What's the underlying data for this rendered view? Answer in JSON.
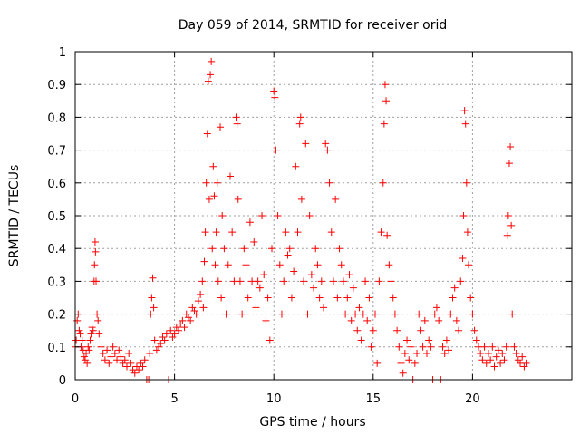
{
  "chart_data": {
    "type": "scatter",
    "title": "Day 059 of 2014, SRMTID for receiver orid",
    "xlabel": "GPS time / hours",
    "ylabel": "SRMTID / TECUs",
    "xlim": [
      0,
      25
    ],
    "ylim": [
      0,
      1
    ],
    "grid": true,
    "marker": "+",
    "marker_color": "#ff0000",
    "x_ticks": [
      0,
      5,
      10,
      15,
      20
    ],
    "x_tick_labels": [
      "0",
      "5",
      "10",
      "15",
      "20"
    ],
    "y_ticks": [
      0,
      0.1,
      0.2,
      0.3,
      0.4,
      0.5,
      0.6,
      0.7,
      0.8,
      0.9,
      1
    ],
    "y_tick_labels": [
      "0",
      "0.1",
      "0.2",
      "0.3",
      "0.4",
      "0.5",
      "0.6",
      "0.7",
      "0.8",
      "0.9",
      "1"
    ],
    "series": [
      {
        "name": "SRMTID",
        "points": [
          [
            0.0,
            0.1
          ],
          [
            0.05,
            0.12
          ],
          [
            0.1,
            0.18
          ],
          [
            0.15,
            0.2
          ],
          [
            0.2,
            0.15
          ],
          [
            0.25,
            0.14
          ],
          [
            0.3,
            0.1
          ],
          [
            0.35,
            0.12
          ],
          [
            0.4,
            0.09
          ],
          [
            0.45,
            0.07
          ],
          [
            0.5,
            0.06
          ],
          [
            0.55,
            0.08
          ],
          [
            0.6,
            0.05
          ],
          [
            0.65,
            0.1
          ],
          [
            0.7,
            0.09
          ],
          [
            0.75,
            0.12
          ],
          [
            0.8,
            0.14
          ],
          [
            0.85,
            0.16
          ],
          [
            0.9,
            0.15
          ],
          [
            0.95,
            0.3
          ],
          [
            0.97,
            0.35
          ],
          [
            1.0,
            0.42
          ],
          [
            1.02,
            0.39
          ],
          [
            1.05,
            0.3
          ],
          [
            1.1,
            0.2
          ],
          [
            1.15,
            0.18
          ],
          [
            1.2,
            0.14
          ],
          [
            1.3,
            0.1
          ],
          [
            1.4,
            0.08
          ],
          [
            1.5,
            0.06
          ],
          [
            1.6,
            0.09
          ],
          [
            1.7,
            0.05
          ],
          [
            1.8,
            0.07
          ],
          [
            1.9,
            0.1
          ],
          [
            2.0,
            0.08
          ],
          [
            2.1,
            0.06
          ],
          [
            2.2,
            0.09
          ],
          [
            2.3,
            0.07
          ],
          [
            2.4,
            0.05
          ],
          [
            2.5,
            0.06
          ],
          [
            2.6,
            0.04
          ],
          [
            2.7,
            0.08
          ],
          [
            2.8,
            0.05
          ],
          [
            2.9,
            0.03
          ],
          [
            3.0,
            0.02
          ],
          [
            3.1,
            0.04
          ],
          [
            3.2,
            0.03
          ],
          [
            3.3,
            0.05
          ],
          [
            3.4,
            0.04
          ],
          [
            3.5,
            0.06
          ],
          [
            3.6,
            0.0
          ],
          [
            3.7,
            0.0
          ],
          [
            3.75,
            0.08
          ],
          [
            3.8,
            0.2
          ],
          [
            3.85,
            0.25
          ],
          [
            3.9,
            0.31
          ],
          [
            3.95,
            0.22
          ],
          [
            4.0,
            0.12
          ],
          [
            4.1,
            0.09
          ],
          [
            4.2,
            0.1
          ],
          [
            4.3,
            0.11
          ],
          [
            4.4,
            0.13
          ],
          [
            4.5,
            0.12
          ],
          [
            4.6,
            0.14
          ],
          [
            4.7,
            0.0
          ],
          [
            4.8,
            0.15
          ],
          [
            4.9,
            0.13
          ],
          [
            5.0,
            0.14
          ],
          [
            5.1,
            0.16
          ],
          [
            5.2,
            0.15
          ],
          [
            5.3,
            0.17
          ],
          [
            5.4,
            0.18
          ],
          [
            5.5,
            0.16
          ],
          [
            5.6,
            0.2
          ],
          [
            5.7,
            0.19
          ],
          [
            5.8,
            0.18
          ],
          [
            5.9,
            0.22
          ],
          [
            6.0,
            0.21
          ],
          [
            6.1,
            0.2
          ],
          [
            6.2,
            0.24
          ],
          [
            6.3,
            0.26
          ],
          [
            6.4,
            0.3
          ],
          [
            6.45,
            0.22
          ],
          [
            6.5,
            0.36
          ],
          [
            6.55,
            0.45
          ],
          [
            6.6,
            0.6
          ],
          [
            6.65,
            0.75
          ],
          [
            6.7,
            0.91
          ],
          [
            6.75,
            0.55
          ],
          [
            6.8,
            0.93
          ],
          [
            6.85,
            0.97
          ],
          [
            6.9,
            0.4
          ],
          [
            6.95,
            0.65
          ],
          [
            7.0,
            0.56
          ],
          [
            7.05,
            0.35
          ],
          [
            7.1,
            0.45
          ],
          [
            7.15,
            0.6
          ],
          [
            7.2,
            0.3
          ],
          [
            7.3,
            0.77
          ],
          [
            7.35,
            0.25
          ],
          [
            7.4,
            0.5
          ],
          [
            7.5,
            0.4
          ],
          [
            7.6,
            0.2
          ],
          [
            7.7,
            0.35
          ],
          [
            7.8,
            0.62
          ],
          [
            7.9,
            0.45
          ],
          [
            8.0,
            0.3
          ],
          [
            8.1,
            0.8
          ],
          [
            8.15,
            0.78
          ],
          [
            8.2,
            0.55
          ],
          [
            8.3,
            0.3
          ],
          [
            8.4,
            0.2
          ],
          [
            8.5,
            0.4
          ],
          [
            8.6,
            0.35
          ],
          [
            8.7,
            0.25
          ],
          [
            8.8,
            0.48
          ],
          [
            8.9,
            0.3
          ],
          [
            9.0,
            0.42
          ],
          [
            9.1,
            0.22
          ],
          [
            9.2,
            0.3
          ],
          [
            9.3,
            0.28
          ],
          [
            9.4,
            0.5
          ],
          [
            9.5,
            0.32
          ],
          [
            9.6,
            0.18
          ],
          [
            9.7,
            0.25
          ],
          [
            9.8,
            0.12
          ],
          [
            9.9,
            0.4
          ],
          [
            10.0,
            0.88
          ],
          [
            10.05,
            0.86
          ],
          [
            10.1,
            0.7
          ],
          [
            10.2,
            0.5
          ],
          [
            10.3,
            0.35
          ],
          [
            10.4,
            0.2
          ],
          [
            10.5,
            0.3
          ],
          [
            10.6,
            0.45
          ],
          [
            10.7,
            0.38
          ],
          [
            10.8,
            0.4
          ],
          [
            10.9,
            0.25
          ],
          [
            11.0,
            0.33
          ],
          [
            11.1,
            0.65
          ],
          [
            11.2,
            0.45
          ],
          [
            11.3,
            0.78
          ],
          [
            11.35,
            0.8
          ],
          [
            11.4,
            0.55
          ],
          [
            11.5,
            0.3
          ],
          [
            11.6,
            0.72
          ],
          [
            11.7,
            0.2
          ],
          [
            11.8,
            0.5
          ],
          [
            11.9,
            0.32
          ],
          [
            12.0,
            0.28
          ],
          [
            12.1,
            0.4
          ],
          [
            12.2,
            0.35
          ],
          [
            12.3,
            0.25
          ],
          [
            12.4,
            0.3
          ],
          [
            12.5,
            0.22
          ],
          [
            12.6,
            0.72
          ],
          [
            12.7,
            0.7
          ],
          [
            12.8,
            0.6
          ],
          [
            12.9,
            0.45
          ],
          [
            13.0,
            0.3
          ],
          [
            13.1,
            0.55
          ],
          [
            13.2,
            0.25
          ],
          [
            13.3,
            0.4
          ],
          [
            13.4,
            0.35
          ],
          [
            13.5,
            0.3
          ],
          [
            13.6,
            0.2
          ],
          [
            13.7,
            0.25
          ],
          [
            13.8,
            0.32
          ],
          [
            13.9,
            0.18
          ],
          [
            14.0,
            0.28
          ],
          [
            14.1,
            0.2
          ],
          [
            14.2,
            0.15
          ],
          [
            14.3,
            0.22
          ],
          [
            14.4,
            0.12
          ],
          [
            14.5,
            0.2
          ],
          [
            14.6,
            0.3
          ],
          [
            14.7,
            0.18
          ],
          [
            14.8,
            0.25
          ],
          [
            14.9,
            0.1
          ],
          [
            15.0,
            0.15
          ],
          [
            15.1,
            0.2
          ],
          [
            15.2,
            0.05
          ],
          [
            15.3,
            0.3
          ],
          [
            15.4,
            0.45
          ],
          [
            15.5,
            0.6
          ],
          [
            15.55,
            0.78
          ],
          [
            15.6,
            0.9
          ],
          [
            15.65,
            0.85
          ],
          [
            15.7,
            0.44
          ],
          [
            15.8,
            0.35
          ],
          [
            15.9,
            0.3
          ],
          [
            16.0,
            0.25
          ],
          [
            16.1,
            0.2
          ],
          [
            16.2,
            0.15
          ],
          [
            16.3,
            0.1
          ],
          [
            16.4,
            0.05
          ],
          [
            16.5,
            0.02
          ],
          [
            16.6,
            0.08
          ],
          [
            16.7,
            0.12
          ],
          [
            16.8,
            0.06
          ],
          [
            16.9,
            0.1
          ],
          [
            17.0,
            0.0
          ],
          [
            17.1,
            0.05
          ],
          [
            17.2,
            0.08
          ],
          [
            17.3,
            0.2
          ],
          [
            17.4,
            0.15
          ],
          [
            17.5,
            0.1
          ],
          [
            17.6,
            0.18
          ],
          [
            17.7,
            0.08
          ],
          [
            17.8,
            0.12
          ],
          [
            17.9,
            0.1
          ],
          [
            18.0,
            0.0
          ],
          [
            18.1,
            0.2
          ],
          [
            18.2,
            0.22
          ],
          [
            18.3,
            0.18
          ],
          [
            18.4,
            0.0
          ],
          [
            18.5,
            0.1
          ],
          [
            18.6,
            0.08
          ],
          [
            18.7,
            0.12
          ],
          [
            18.8,
            0.09
          ],
          [
            18.9,
            0.2
          ],
          [
            19.0,
            0.25
          ],
          [
            19.1,
            0.28
          ],
          [
            19.2,
            0.18
          ],
          [
            19.3,
            0.15
          ],
          [
            19.4,
            0.3
          ],
          [
            19.5,
            0.37
          ],
          [
            19.55,
            0.5
          ],
          [
            19.6,
            0.82
          ],
          [
            19.65,
            0.78
          ],
          [
            19.7,
            0.6
          ],
          [
            19.75,
            0.45
          ],
          [
            19.8,
            0.35
          ],
          [
            19.9,
            0.25
          ],
          [
            20.0,
            0.2
          ],
          [
            20.1,
            0.15
          ],
          [
            20.2,
            0.12
          ],
          [
            20.3,
            0.1
          ],
          [
            20.4,
            0.08
          ],
          [
            20.5,
            0.06
          ],
          [
            20.6,
            0.1
          ],
          [
            20.7,
            0.05
          ],
          [
            20.8,
            0.08
          ],
          [
            20.9,
            0.06
          ],
          [
            21.0,
            0.1
          ],
          [
            21.1,
            0.04
          ],
          [
            21.2,
            0.07
          ],
          [
            21.3,
            0.09
          ],
          [
            21.4,
            0.05
          ],
          [
            21.5,
            0.08
          ],
          [
            21.6,
            0.06
          ],
          [
            21.7,
            0.1
          ],
          [
            21.75,
            0.44
          ],
          [
            21.8,
            0.5
          ],
          [
            21.85,
            0.66
          ],
          [
            21.9,
            0.71
          ],
          [
            21.95,
            0.47
          ],
          [
            22.0,
            0.2
          ],
          [
            22.1,
            0.1
          ],
          [
            22.2,
            0.08
          ],
          [
            22.3,
            0.06
          ],
          [
            22.4,
            0.05
          ],
          [
            22.5,
            0.07
          ],
          [
            22.6,
            0.04
          ],
          [
            22.7,
            0.05
          ]
        ]
      }
    ]
  }
}
